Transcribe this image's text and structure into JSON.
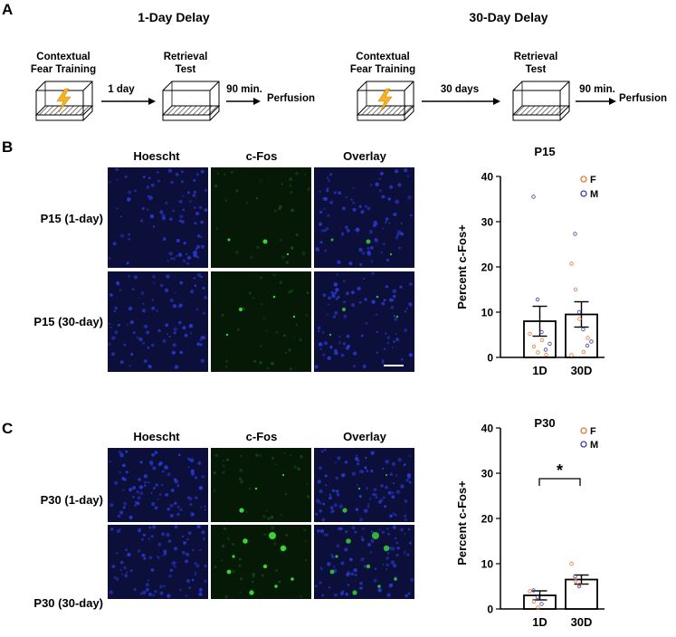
{
  "panel_a": {
    "label": "A",
    "left": {
      "title": "1-Day Delay",
      "training": [
        "Contextual",
        "Fear Training"
      ],
      "arrow": "1 day",
      "retrieval": [
        "Retrieval",
        "Test"
      ],
      "arrow2": "90 min.",
      "end": "Perfusion"
    },
    "right": {
      "title": "30-Day Delay",
      "training": [
        "Contextual",
        "Fear Training"
      ],
      "arrow": "30 days",
      "retrieval": [
        "Retrieval",
        "Test"
      ],
      "arrow2": "90 min.",
      "end": "Perfusion"
    }
  },
  "panel_b": {
    "label": "B",
    "cols": [
      "Hoescht",
      "c-Fos",
      "Overlay"
    ],
    "rows": [
      "P15 (1-day)",
      "P15 (30-day)"
    ]
  },
  "panel_c": {
    "label": "C",
    "cols": [
      "Hoescht",
      "c-Fos",
      "Overlay"
    ],
    "rows": [
      "P30 (1-day)",
      "P30 (30-day)"
    ]
  },
  "colors": {
    "female": "#e8772e",
    "male": "#3b3fa8",
    "hoechst_bg": "#0b0f3a",
    "cfos_bg": "#061806"
  },
  "chart_data": [
    {
      "type": "bar",
      "title": "P15",
      "ylabel": "Percent c-Fos+",
      "xlabel": "",
      "categories": [
        "1D",
        "30D"
      ],
      "values": [
        8.0,
        9.5
      ],
      "sem": [
        3.3,
        2.8
      ],
      "ylim": [
        0,
        40
      ],
      "yticks": [
        0,
        10,
        20,
        30,
        40
      ],
      "legend": {
        "position": "top-right",
        "entries": [
          "F",
          "M"
        ]
      },
      "points": {
        "1D": {
          "F": [
            5.2,
            2.4,
            1.1,
            3.8,
            0.6
          ],
          "M": [
            35.5,
            12.8,
            5.6,
            1.7,
            3.0
          ]
        },
        "30D": {
          "F": [
            20.7,
            15.0,
            8.5,
            1.2,
            4.3,
            0.5
          ],
          "M": [
            27.3,
            10.0,
            6.2,
            2.6,
            3.5
          ]
        }
      },
      "significance": null
    },
    {
      "type": "bar",
      "title": "P30",
      "ylabel": "Percent c-Fos+",
      "xlabel": "",
      "categories": [
        "1D",
        "30D"
      ],
      "values": [
        3.0,
        6.5
      ],
      "sem": [
        1.0,
        1.0
      ],
      "ylim": [
        0,
        40
      ],
      "yticks": [
        0,
        10,
        20,
        30,
        40
      ],
      "legend": {
        "position": "top-right",
        "entries": [
          "F",
          "M"
        ]
      },
      "points": {
        "1D": {
          "F": [
            3.9,
            1.6,
            0.3
          ],
          "M": [
            4.1,
            2.6,
            1.1
          ]
        },
        "30D": {
          "F": [
            10.0,
            6.2,
            5.4
          ],
          "M": [
            7.2,
            5.0
          ]
        }
      },
      "significance": "*"
    }
  ]
}
